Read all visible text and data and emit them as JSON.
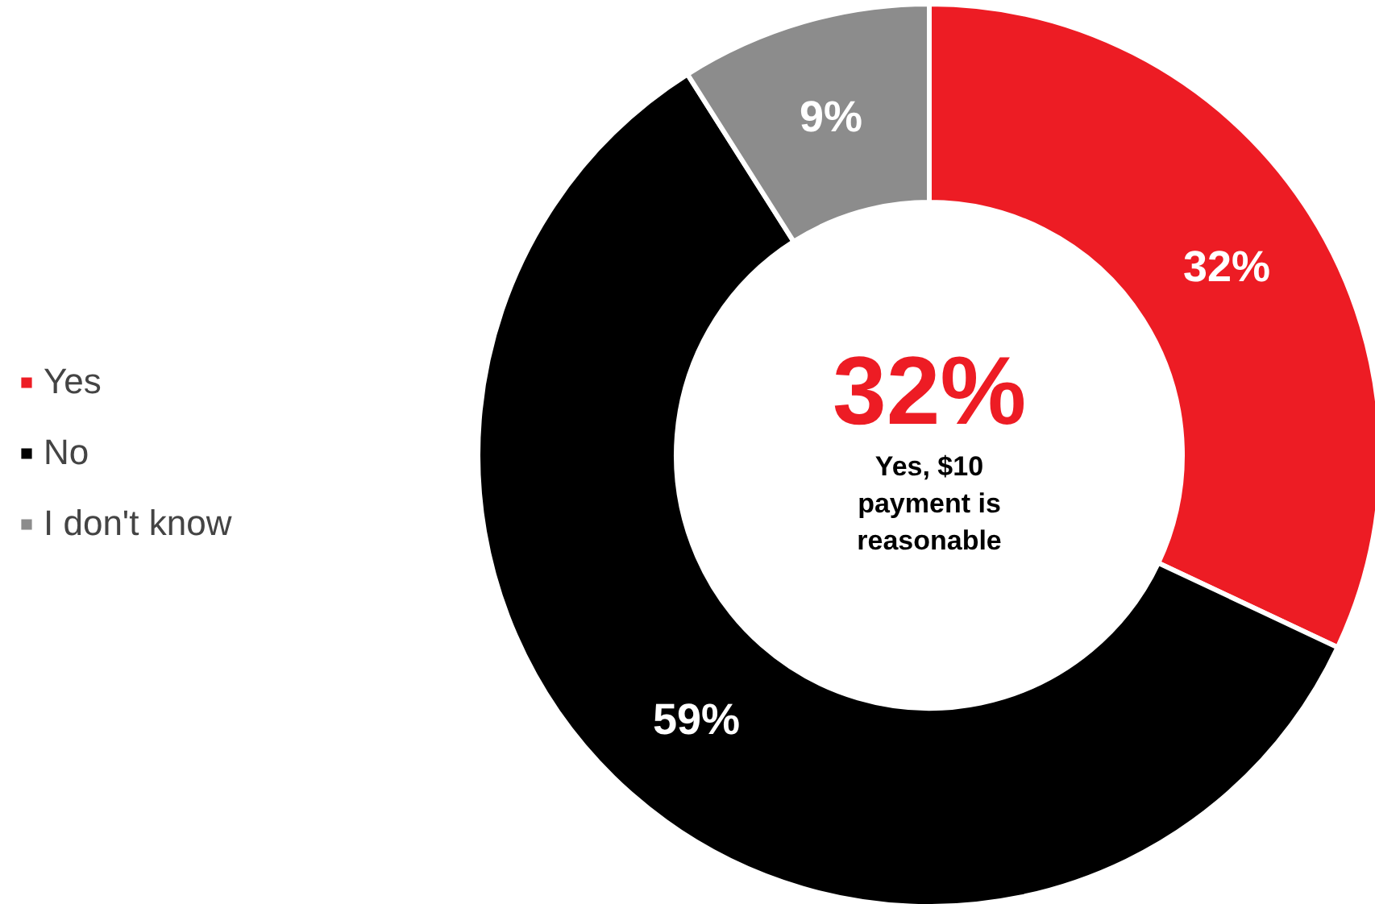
{
  "chart_data": {
    "type": "donut",
    "categories": [
      "Yes",
      "No",
      "I don't know"
    ],
    "values": [
      32,
      59,
      9
    ],
    "colors": [
      "#ed1c24",
      "#000000",
      "#8c8c8c"
    ],
    "value_labels": [
      "32%",
      "59%",
      "9%"
    ],
    "legend": "left",
    "annotations": [
      "32%",
      "Yes, $10 payment is reasonable"
    ]
  }
}
